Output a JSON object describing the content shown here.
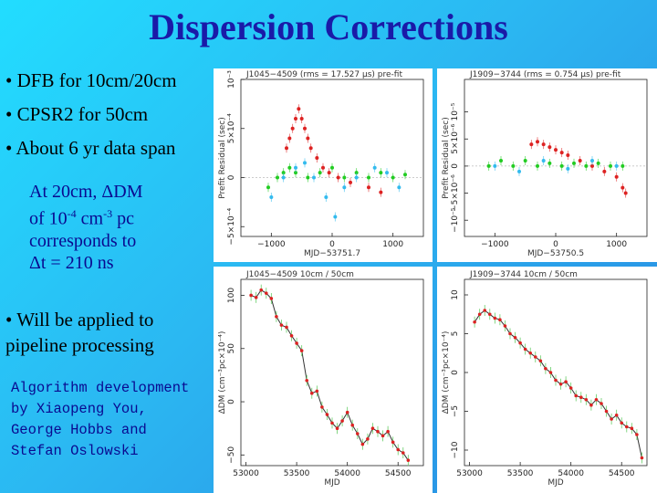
{
  "slide": {
    "title": "Dispersion Corrections",
    "bullets": [
      "• DFB for 10cm/20cm",
      "• CPSR2 for 50cm",
      "• About 6 yr data span"
    ],
    "note_lines": [
      "At 20cm, ΔDM",
      "corresponds to",
      "Δt = 210 ns"
    ],
    "note_dm_line": {
      "prefix": "of 10",
      "exp1": "-4",
      "mid": " cm",
      "exp2": "-3",
      "suffix": " pc"
    },
    "pipeline": [
      "• Will be applied to",
      "pipeline processing"
    ],
    "credits": [
      "Algorithm development",
      "by Xiaopeng You,",
      "George Hobbs and",
      "Stefan Oslowski"
    ]
  },
  "chart_data": [
    {
      "type": "scatter",
      "title": "J1045−4509 (rms = 17.527 µs) pre-fit",
      "xlabel": "MJD−53751.7",
      "ylabel": "Prefit Residual (sec)",
      "xlim": [
        -1500,
        1500
      ],
      "ylim": [
        -0.0006,
        0.001
      ],
      "x_ticks": [
        -1000,
        0,
        1000
      ],
      "x_tick_labels": [
        "−1000",
        "0",
        "1000"
      ],
      "y_ticks": [
        -0.0005,
        0,
        0.0005,
        0.001
      ],
      "y_tick_labels": [
        "−5×10⁻⁴",
        "0",
        "5×10⁻⁴",
        "10⁻³"
      ],
      "series": [
        {
          "color": "#dd2222",
          "points": [
            [
              -750,
              0.0003
            ],
            [
              -700,
              0.0004
            ],
            [
              -650,
              0.0005
            ],
            [
              -600,
              0.0006
            ],
            [
              -550,
              0.0007
            ],
            [
              -500,
              0.0006
            ],
            [
              -450,
              0.0005
            ],
            [
              -400,
              0.0004
            ],
            [
              -350,
              0.0003
            ],
            [
              -250,
              0.0002
            ],
            [
              -150,
              0.0001
            ],
            [
              -50,
              5e-05
            ],
            [
              100,
              0.0
            ],
            [
              300,
              -5e-05
            ],
            [
              600,
              -0.0001
            ],
            [
              800,
              -0.00015
            ]
          ]
        },
        {
          "color": "#22cc22",
          "points": [
            [
              -1050,
              -0.0001
            ],
            [
              -900,
              0.0
            ],
            [
              -800,
              5e-05
            ],
            [
              -700,
              0.0001
            ],
            [
              -600,
              5e-05
            ],
            [
              -400,
              0.0
            ],
            [
              -200,
              5e-05
            ],
            [
              0,
              0.0001
            ],
            [
              200,
              0.0
            ],
            [
              400,
              5e-05
            ],
            [
              600,
              0.0
            ],
            [
              800,
              5e-05
            ],
            [
              1000,
              0.0
            ],
            [
              1200,
              3e-05
            ]
          ]
        },
        {
          "color": "#33bbee",
          "points": [
            [
              -1000,
              -0.0002
            ],
            [
              -800,
              0.0
            ],
            [
              -600,
              0.0001
            ],
            [
              -450,
              0.00015
            ],
            [
              -300,
              0.0
            ],
            [
              -100,
              -0.0002
            ],
            [
              50,
              -0.0004
            ],
            [
              200,
              -0.0001
            ],
            [
              400,
              0.0
            ],
            [
              700,
              0.0001
            ],
            [
              900,
              5e-05
            ],
            [
              1100,
              -0.0001
            ]
          ]
        }
      ]
    },
    {
      "type": "scatter",
      "title": "J1909−3744 (rms = 0.754 µs) pre-fit",
      "xlabel": "MJD−53750.5",
      "ylabel": "Prefit Residual (sec)",
      "xlim": [
        -1500,
        1500
      ],
      "ylim": [
        -1.3e-05,
        1.6e-05
      ],
      "x_ticks": [
        -1000,
        0,
        1000
      ],
      "x_tick_labels": [
        "−1000",
        "0",
        "1000"
      ],
      "y_ticks": [
        -1e-05,
        -5e-06,
        0,
        5e-06,
        1e-05
      ],
      "y_tick_labels": [
        "−10⁻⁵",
        "−5×10⁻⁶",
        "0",
        "5×10⁻⁶",
        "10⁻⁵"
      ],
      "series": [
        {
          "color": "#dd2222",
          "points": [
            [
              -400,
              4e-06
            ],
            [
              -300,
              4.5e-06
            ],
            [
              -200,
              4e-06
            ],
            [
              -100,
              3.5e-06
            ],
            [
              0,
              3e-06
            ],
            [
              100,
              2.5e-06
            ],
            [
              200,
              2e-06
            ],
            [
              400,
              1e-06
            ],
            [
              600,
              0.0
            ],
            [
              800,
              -1e-06
            ],
            [
              1000,
              -2e-06
            ],
            [
              1100,
              -4e-06
            ],
            [
              1150,
              -5e-06
            ]
          ]
        },
        {
          "color": "#22cc22",
          "points": [
            [
              -1100,
              0.0
            ],
            [
              -900,
              1e-06
            ],
            [
              -700,
              0.0
            ],
            [
              -500,
              1e-06
            ],
            [
              -300,
              0.0
            ],
            [
              -100,
              5e-07
            ],
            [
              100,
              0.0
            ],
            [
              300,
              5e-07
            ],
            [
              500,
              0.0
            ],
            [
              700,
              5e-07
            ],
            [
              900,
              0.0
            ],
            [
              1100,
              0.0
            ]
          ]
        },
        {
          "color": "#33bbee",
          "points": [
            [
              -1000,
              0.0
            ],
            [
              -600,
              -1e-06
            ],
            [
              -200,
              1e-06
            ],
            [
              200,
              -5e-07
            ],
            [
              600,
              1e-06
            ],
            [
              1000,
              0.0
            ]
          ]
        }
      ]
    },
    {
      "type": "line",
      "title": "J1045−4509  10cm / 50cm",
      "xlabel": "MJD",
      "ylabel": "ΔDM (cm⁻³pc×10⁻⁴)",
      "xlim": [
        52950,
        54750
      ],
      "ylim": [
        -60,
        115
      ],
      "x_ticks": [
        53000,
        53500,
        54000,
        54500
      ],
      "x_tick_labels": [
        "53000",
        "53500",
        "54000",
        "54500"
      ],
      "y_ticks": [
        -50,
        0,
        50,
        100
      ],
      "y_tick_labels": [
        "−50",
        "0",
        "50",
        "100"
      ],
      "x": [
        53050,
        53100,
        53150,
        53200,
        53250,
        53300,
        53350,
        53400,
        53450,
        53500,
        53550,
        53600,
        53650,
        53700,
        53750,
        53800,
        53850,
        53900,
        53950,
        54000,
        54050,
        54100,
        54150,
        54200,
        54250,
        54300,
        54350,
        54400,
        54450,
        54500,
        54550,
        54600
      ],
      "values": [
        100,
        98,
        105,
        102,
        97,
        80,
        72,
        70,
        62,
        55,
        48,
        20,
        8,
        10,
        -5,
        -12,
        -20,
        -25,
        -18,
        -10,
        -22,
        -30,
        -40,
        -35,
        -25,
        -28,
        -32,
        -28,
        -38,
        -45,
        -48,
        -55
      ]
    },
    {
      "type": "line",
      "title": "J1909−3744  10cm / 50cm",
      "xlabel": "MJD",
      "ylabel": "ΔDM (cm⁻³pc×10⁻⁴)",
      "xlim": [
        52950,
        54750
      ],
      "ylim": [
        -12,
        12
      ],
      "x_ticks": [
        53000,
        53500,
        54000,
        54500
      ],
      "x_tick_labels": [
        "53000",
        "53500",
        "54000",
        "54500"
      ],
      "y_ticks": [
        -10,
        -5,
        0,
        5,
        10
      ],
      "y_tick_labels": [
        "−10",
        "−5",
        "0",
        "5",
        "10"
      ],
      "x": [
        53050,
        53100,
        53150,
        53200,
        53250,
        53300,
        53350,
        53400,
        53450,
        53500,
        53550,
        53600,
        53650,
        53700,
        53750,
        53800,
        53850,
        53900,
        53950,
        54000,
        54050,
        54100,
        54150,
        54200,
        54250,
        54300,
        54350,
        54400,
        54450,
        54500,
        54550,
        54600,
        54650,
        54700
      ],
      "values": [
        6.5,
        7.5,
        8,
        7.5,
        7,
        6.8,
        6,
        5,
        4.5,
        3.8,
        3,
        2.5,
        2,
        1.5,
        0.5,
        0,
        -1,
        -1.5,
        -1.2,
        -2,
        -3,
        -3.2,
        -3.5,
        -4.2,
        -3.5,
        -4,
        -5,
        -6,
        -5.5,
        -6.5,
        -7,
        -7.2,
        -8,
        -11
      ]
    }
  ]
}
